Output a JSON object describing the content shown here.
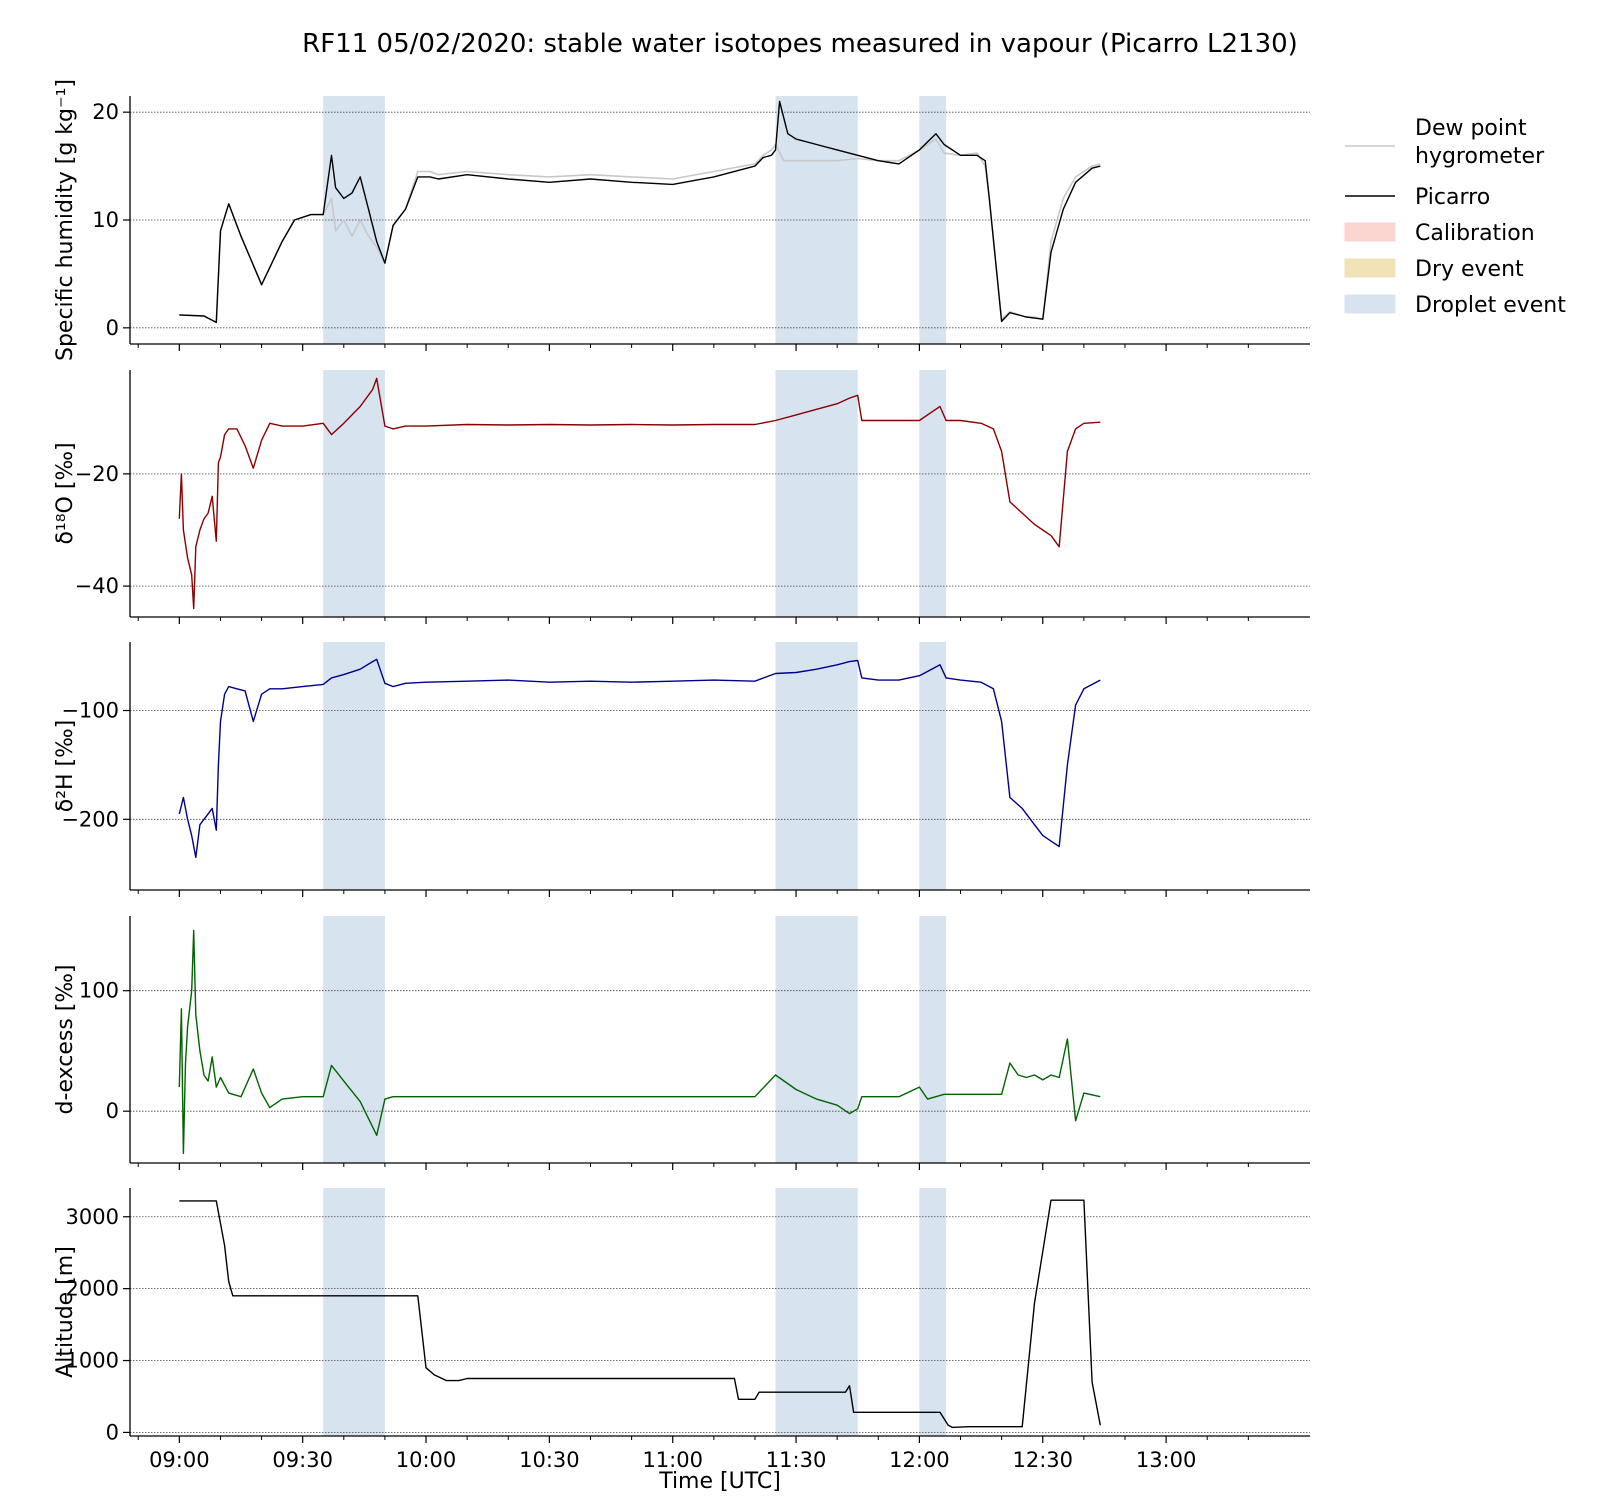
{
  "figure_title": "RF11 05/02/2020: stable water isotopes measured in vapour (Picarro L2130)",
  "colors": {
    "picarro_q": "#000000",
    "dewpoint": "#c8c8c8",
    "d18o": "#8b0000",
    "d2h": "#00008b",
    "dexcess": "#006400",
    "altitude": "#000000",
    "calibration": "#fbd5d0",
    "dry_event": "#f1e2b8",
    "droplet_event": "#d7e3ee",
    "gridline": "#444444"
  },
  "legend": {
    "placement": "top-right outside",
    "items": [
      {
        "label_line1": "Dew point",
        "label_line2": "hygrometer",
        "kind": "line",
        "color_key": "dewpoint"
      },
      {
        "label_line1": "Picarro",
        "label_line2": "",
        "kind": "line",
        "color_key": "picarro_q"
      },
      {
        "label_line1": "Calibration",
        "label_line2": "",
        "kind": "patch",
        "color_key": "calibration"
      },
      {
        "label_line1": "Dry event",
        "label_line2": "",
        "kind": "patch",
        "color_key": "dry_event"
      },
      {
        "label_line1": "Droplet event",
        "label_line2": "",
        "kind": "patch",
        "color_key": "droplet_event"
      }
    ]
  },
  "chart_data": [
    {
      "type": "line",
      "ylabel": "Specific humidity [g kg⁻¹]",
      "ylim": [
        -1.5,
        21.5
      ],
      "yticks": [
        0,
        10,
        20
      ],
      "xlim": [
        -12,
        275
      ],
      "x_unit": "minutes after 09:00 UTC",
      "droplet_events": [
        [
          35,
          50
        ],
        [
          145,
          165
        ],
        [
          180,
          186.5
        ]
      ],
      "series": [
        {
          "name": "Dew point hygrometer",
          "color_key": "dewpoint",
          "x": [
            0,
            6,
            9,
            10,
            12,
            15,
            20,
            25,
            28,
            32,
            35,
            37,
            38,
            40,
            42,
            44,
            46,
            48,
            50,
            52,
            55,
            58,
            61,
            63,
            70,
            80,
            90,
            100,
            110,
            120,
            130,
            140,
            142,
            144,
            145,
            147,
            150,
            155,
            160,
            165,
            170,
            175,
            180,
            184,
            186,
            190,
            194,
            196,
            197,
            200,
            202,
            206,
            208,
            210,
            212,
            215,
            218,
            222,
            224
          ],
          "y": [
            1.2,
            1.1,
            0.5,
            9,
            11.5,
            8.5,
            4,
            8,
            10,
            10.5,
            10.5,
            12,
            9,
            10,
            8.5,
            10,
            8.5,
            7.5,
            6,
            9.5,
            11,
            14.5,
            14.5,
            14.2,
            14.5,
            14.2,
            14,
            14.2,
            14,
            13.8,
            14.5,
            15.2,
            16,
            16.5,
            17,
            15.5,
            15.5,
            15.5,
            15.5,
            15.7,
            15.5,
            15.5,
            16.5,
            17.5,
            16.2,
            16,
            16.2,
            15,
            12,
            0.8,
            1.5,
            1,
            1,
            0.8,
            8,
            12,
            14,
            15,
            15.2
          ]
        },
        {
          "name": "Picarro",
          "color_key": "picarro_q",
          "x": [
            0,
            6,
            9,
            10,
            12,
            15,
            20,
            25,
            28,
            32,
            35,
            37,
            38,
            40,
            42,
            44,
            46,
            48,
            50,
            52,
            55,
            58,
            61,
            63,
            70,
            80,
            90,
            100,
            110,
            120,
            130,
            140,
            142,
            144,
            145,
            146,
            148,
            150,
            155,
            160,
            165,
            170,
            175,
            180,
            184,
            186,
            190,
            194,
            196,
            197,
            200,
            202,
            206,
            208,
            210,
            212,
            215,
            218,
            222,
            224
          ],
          "y": [
            1.2,
            1.1,
            0.5,
            9,
            11.5,
            8.5,
            4,
            8,
            10,
            10.5,
            10.5,
            16,
            13,
            12,
            12.5,
            14,
            11,
            8,
            6,
            9.5,
            11,
            14,
            14,
            13.8,
            14.2,
            13.8,
            13.5,
            13.8,
            13.5,
            13.3,
            14,
            15,
            15.8,
            16,
            16.5,
            21,
            18,
            17.5,
            17,
            16.5,
            16,
            15.5,
            15.2,
            16.5,
            18,
            17,
            16,
            16,
            15.5,
            12,
            0.6,
            1.4,
            1,
            0.9,
            0.8,
            7,
            11,
            13.5,
            14.8,
            15
          ]
        }
      ]
    },
    {
      "type": "line",
      "ylabel": "δ¹⁸O [‰]",
      "ylim": [
        -45.5,
        -1.5
      ],
      "yticks": [
        -40,
        -20
      ],
      "xlim": [
        -12,
        275
      ],
      "x_unit": "minutes after 09:00 UTC",
      "droplet_events": [
        [
          35,
          50
        ],
        [
          145,
          165
        ],
        [
          180,
          186.5
        ]
      ],
      "series": [
        {
          "name": "δ¹⁸O",
          "color_key": "d18o",
          "x": [
            0,
            0.5,
            1,
            2,
            3,
            3.5,
            4,
            5,
            6,
            7,
            8,
            9,
            9.5,
            10,
            11,
            12,
            14,
            16,
            18,
            20,
            22,
            25,
            30,
            35,
            37,
            40,
            44,
            47,
            48,
            50,
            52,
            55,
            60,
            70,
            80,
            90,
            100,
            110,
            120,
            130,
            140,
            145,
            150,
            155,
            160,
            163,
            165,
            166,
            170,
            175,
            180,
            183,
            185,
            186.5,
            190,
            195,
            198,
            200,
            202,
            205,
            208,
            210,
            212,
            214,
            216,
            218,
            220,
            224
          ],
          "y": [
            -28,
            -20,
            -30,
            -35,
            -38,
            -44,
            -33,
            -30,
            -28,
            -27,
            -24,
            -32,
            -18,
            -17,
            -13,
            -12,
            -12,
            -15,
            -19,
            -14,
            -11,
            -11.5,
            -11.5,
            -11,
            -13,
            -11,
            -8,
            -5,
            -3,
            -11.5,
            -12,
            -11.5,
            -11.5,
            -11.2,
            -11.3,
            -11.2,
            -11.3,
            -11.2,
            -11.3,
            -11.2,
            -11.2,
            -10.5,
            -9.5,
            -8.5,
            -7.5,
            -6.5,
            -6,
            -10.5,
            -10.5,
            -10.5,
            -10.5,
            -9,
            -8,
            -10.5,
            -10.5,
            -11,
            -12,
            -16,
            -25,
            -27,
            -29,
            -30,
            -31,
            -33,
            -16,
            -12,
            -11,
            -10.8
          ]
        }
      ]
    },
    {
      "type": "line",
      "ylabel": "δ²H [‰]",
      "ylim": [
        -265,
        -37
      ],
      "yticks": [
        -200,
        -100
      ],
      "xlim": [
        -12,
        275
      ],
      "x_unit": "minutes after 09:00 UTC",
      "droplet_events": [
        [
          35,
          50
        ],
        [
          145,
          165
        ],
        [
          180,
          186.5
        ]
      ],
      "series": [
        {
          "name": "δ²H",
          "color_key": "d2h",
          "x": [
            0,
            1,
            2,
            3,
            4,
            5,
            6,
            7,
            8,
            9,
            9.5,
            10,
            11,
            12,
            14,
            16,
            18,
            20,
            22,
            25,
            30,
            35,
            37,
            40,
            44,
            47,
            48,
            50,
            52,
            55,
            60,
            70,
            80,
            90,
            100,
            110,
            120,
            130,
            140,
            145,
            150,
            155,
            160,
            163,
            165,
            166,
            170,
            175,
            180,
            183,
            185,
            186.5,
            190,
            195,
            198,
            200,
            202,
            205,
            208,
            210,
            212,
            214,
            216,
            218,
            220,
            224
          ],
          "y": [
            -195,
            -180,
            -200,
            -215,
            -235,
            -205,
            -200,
            -195,
            -190,
            -210,
            -150,
            -110,
            -85,
            -78,
            -80,
            -82,
            -110,
            -85,
            -80,
            -80,
            -78,
            -76,
            -70,
            -67,
            -62,
            -55,
            -53,
            -75,
            -78,
            -75,
            -74,
            -73,
            -72,
            -74,
            -73,
            -74,
            -73,
            -72,
            -73,
            -66,
            -65,
            -62,
            -58,
            -55,
            -54,
            -70,
            -72,
            -72,
            -68,
            -62,
            -58,
            -70,
            -72,
            -74,
            -80,
            -110,
            -180,
            -190,
            -205,
            -215,
            -220,
            -225,
            -150,
            -95,
            -80,
            -72
          ]
        }
      ]
    },
    {
      "type": "line",
      "ylabel": "d-excess [‰]",
      "ylim": [
        -43,
        162
      ],
      "yticks": [
        0,
        100
      ],
      "xlim": [
        -12,
        275
      ],
      "x_unit": "minutes after 09:00 UTC",
      "droplet_events": [
        [
          35,
          50
        ],
        [
          145,
          165
        ],
        [
          180,
          186.5
        ]
      ],
      "series": [
        {
          "name": "d-excess",
          "color_key": "dexcess",
          "x": [
            0,
            0.5,
            1,
            1.5,
            2,
            3,
            3.5,
            4,
            5,
            6,
            7,
            8,
            9,
            10,
            12,
            15,
            18,
            20,
            22,
            25,
            30,
            35,
            37,
            40,
            44,
            48,
            50,
            52,
            55,
            60,
            70,
            80,
            90,
            100,
            110,
            120,
            130,
            140,
            145,
            150,
            155,
            160,
            163,
            165,
            166,
            170,
            175,
            180,
            182,
            186,
            190,
            195,
            198,
            200,
            202,
            204,
            206,
            208,
            210,
            212,
            214,
            216,
            218,
            220,
            224
          ],
          "y": [
            20,
            85,
            -35,
            40,
            70,
            100,
            150,
            80,
            50,
            30,
            25,
            45,
            20,
            28,
            15,
            12,
            35,
            15,
            3,
            10,
            12,
            12,
            38,
            25,
            8,
            -20,
            10,
            12,
            12,
            12,
            12,
            12,
            12,
            12,
            12,
            12,
            12,
            12,
            30,
            18,
            10,
            5,
            -2,
            2,
            12,
            12,
            12,
            20,
            10,
            14,
            14,
            14,
            14,
            14,
            40,
            30,
            28,
            30,
            26,
            30,
            28,
            60,
            -8,
            15,
            12
          ]
        }
      ]
    },
    {
      "type": "line",
      "ylabel": "Altitude [m]",
      "ylim": [
        -50,
        3400
      ],
      "yticks": [
        0,
        1000,
        2000,
        3000
      ],
      "xlim": [
        -12,
        275
      ],
      "x_unit": "minutes after 09:00 UTC",
      "droplet_events": [
        [
          35,
          50
        ],
        [
          145,
          165
        ],
        [
          180,
          186.5
        ]
      ],
      "series": [
        {
          "name": "Altitude",
          "color_key": "altitude",
          "x": [
            0,
            9,
            11,
            12,
            13,
            17,
            35,
            45,
            58,
            60,
            62,
            65,
            68,
            70,
            90,
            110,
            130,
            135,
            136,
            140,
            141,
            160,
            162,
            163,
            164,
            180,
            185,
            187,
            188,
            192,
            205,
            208,
            212,
            215,
            220,
            222,
            224
          ],
          "y": [
            3220,
            3220,
            2600,
            2100,
            1900,
            1900,
            1900,
            1900,
            1900,
            900,
            800,
            720,
            720,
            750,
            750,
            750,
            750,
            750,
            460,
            460,
            560,
            560,
            560,
            650,
            280,
            280,
            280,
            100,
            70,
            80,
            80,
            1800,
            3230,
            3230,
            3230,
            700,
            100
          ]
        }
      ]
    }
  ],
  "xaxis": {
    "label": "Time [UTC]",
    "ticks": [
      {
        "x": 0,
        "label": "09:00"
      },
      {
        "x": 30,
        "label": "09:30"
      },
      {
        "x": 60,
        "label": "10:00"
      },
      {
        "x": 90,
        "label": "10:30"
      },
      {
        "x": 120,
        "label": "11:00"
      },
      {
        "x": 150,
        "label": "11:30"
      },
      {
        "x": 180,
        "label": "12:00"
      },
      {
        "x": 210,
        "label": "12:30"
      },
      {
        "x": 240,
        "label": "13:00"
      }
    ]
  }
}
